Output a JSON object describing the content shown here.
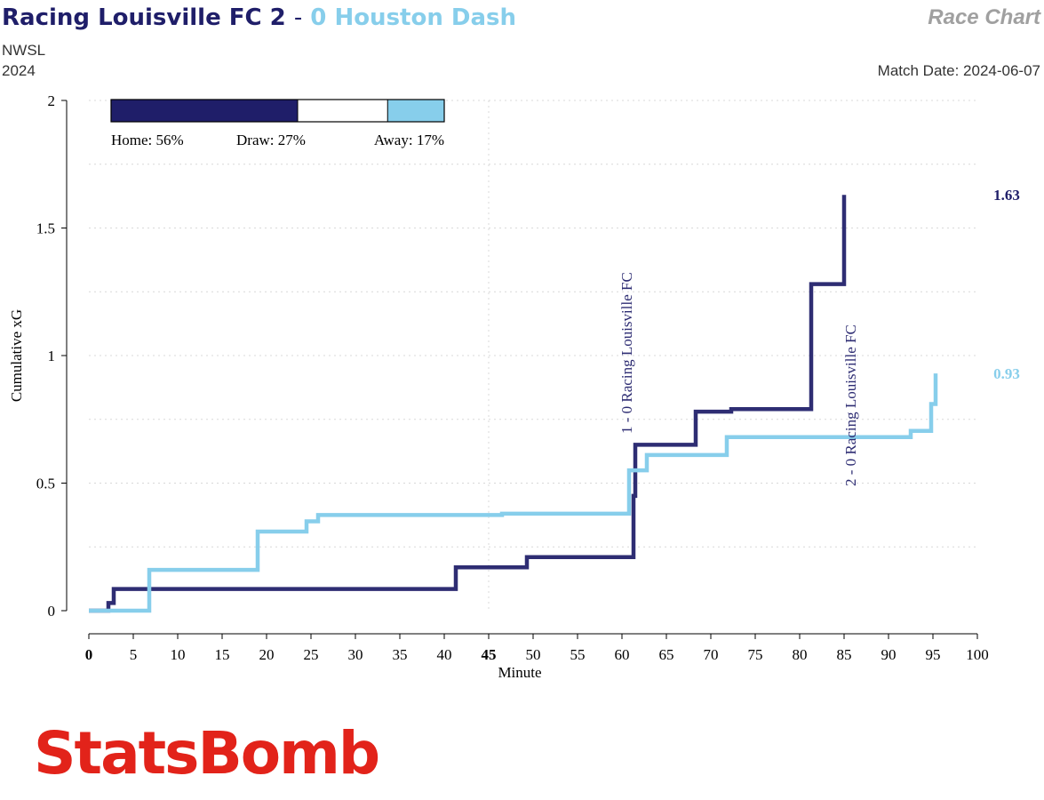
{
  "header": {
    "home_team": "Racing Louisville FC",
    "home_score": "2",
    "separator": "-",
    "away_score": "0",
    "away_team": "Houston Dash",
    "competition": "NWSL",
    "season": "2024",
    "chart_label": "Race Chart",
    "match_date": "Match Date: 2024-06-07"
  },
  "colors": {
    "home": "#1f1e69",
    "home_line": "#2e2d73",
    "away": "#87ceeb",
    "logo": "#e2231a"
  },
  "logo_text": "StatsBomb",
  "chart_data": {
    "type": "line",
    "xlabel": "Minute",
    "ylabel": "Cumulative xG",
    "xlim": [
      0,
      100
    ],
    "ylim": [
      0,
      2
    ],
    "x_ticks": [
      0,
      5,
      10,
      15,
      20,
      25,
      30,
      35,
      40,
      45,
      50,
      55,
      60,
      65,
      70,
      75,
      80,
      85,
      90,
      95,
      100
    ],
    "x_ticks_bold": [
      0,
      45
    ],
    "y_ticks": [
      0,
      0.5,
      1,
      1.5,
      2
    ],
    "y_tick_labels": [
      "0",
      "0.5",
      "1",
      "1.5",
      "2"
    ],
    "grid": "dotted",
    "probability_bar": {
      "home": 56,
      "draw": 27,
      "away": 17,
      "labels": [
        "Home: 56%",
        "Draw: 27%",
        "Away: 17%"
      ]
    },
    "series": [
      {
        "team": "home",
        "final_label": "1.63",
        "points": [
          [
            0,
            0
          ],
          [
            2.2,
            0
          ],
          [
            2.2,
            0.03
          ],
          [
            2.8,
            0.03
          ],
          [
            2.8,
            0.085
          ],
          [
            41.3,
            0.085
          ],
          [
            41.3,
            0.17
          ],
          [
            49.3,
            0.17
          ],
          [
            49.3,
            0.21
          ],
          [
            61.3,
            0.21
          ],
          [
            61.3,
            0.45
          ],
          [
            61.5,
            0.45
          ],
          [
            61.5,
            0.65
          ],
          [
            68.3,
            0.65
          ],
          [
            68.3,
            0.78
          ],
          [
            72.3,
            0.78
          ],
          [
            72.3,
            0.79
          ],
          [
            81.3,
            0.79
          ],
          [
            81.3,
            1.28
          ],
          [
            85.0,
            1.28
          ],
          [
            85.0,
            1.63
          ]
        ]
      },
      {
        "team": "away",
        "final_label": "0.93",
        "points": [
          [
            0,
            0
          ],
          [
            6.8,
            0
          ],
          [
            6.8,
            0.16
          ],
          [
            19.0,
            0.16
          ],
          [
            19.0,
            0.31
          ],
          [
            24.5,
            0.31
          ],
          [
            24.5,
            0.35
          ],
          [
            25.8,
            0.35
          ],
          [
            25.8,
            0.375
          ],
          [
            46.5,
            0.375
          ],
          [
            46.5,
            0.38
          ],
          [
            60.8,
            0.38
          ],
          [
            60.8,
            0.55
          ],
          [
            62.8,
            0.55
          ],
          [
            62.8,
            0.61
          ],
          [
            71.8,
            0.61
          ],
          [
            71.8,
            0.68
          ],
          [
            92.5,
            0.68
          ],
          [
            92.5,
            0.705
          ],
          [
            94.8,
            0.705
          ],
          [
            94.8,
            0.81
          ],
          [
            95.3,
            0.81
          ],
          [
            95.3,
            0.93
          ]
        ]
      }
    ],
    "annotations": [
      {
        "label": "1 - 0 Racing Louisville FC",
        "minute": 61.3,
        "team": "home"
      },
      {
        "label": "2 - 0 Racing Louisville FC",
        "minute": 86.5,
        "team": "home"
      }
    ]
  }
}
